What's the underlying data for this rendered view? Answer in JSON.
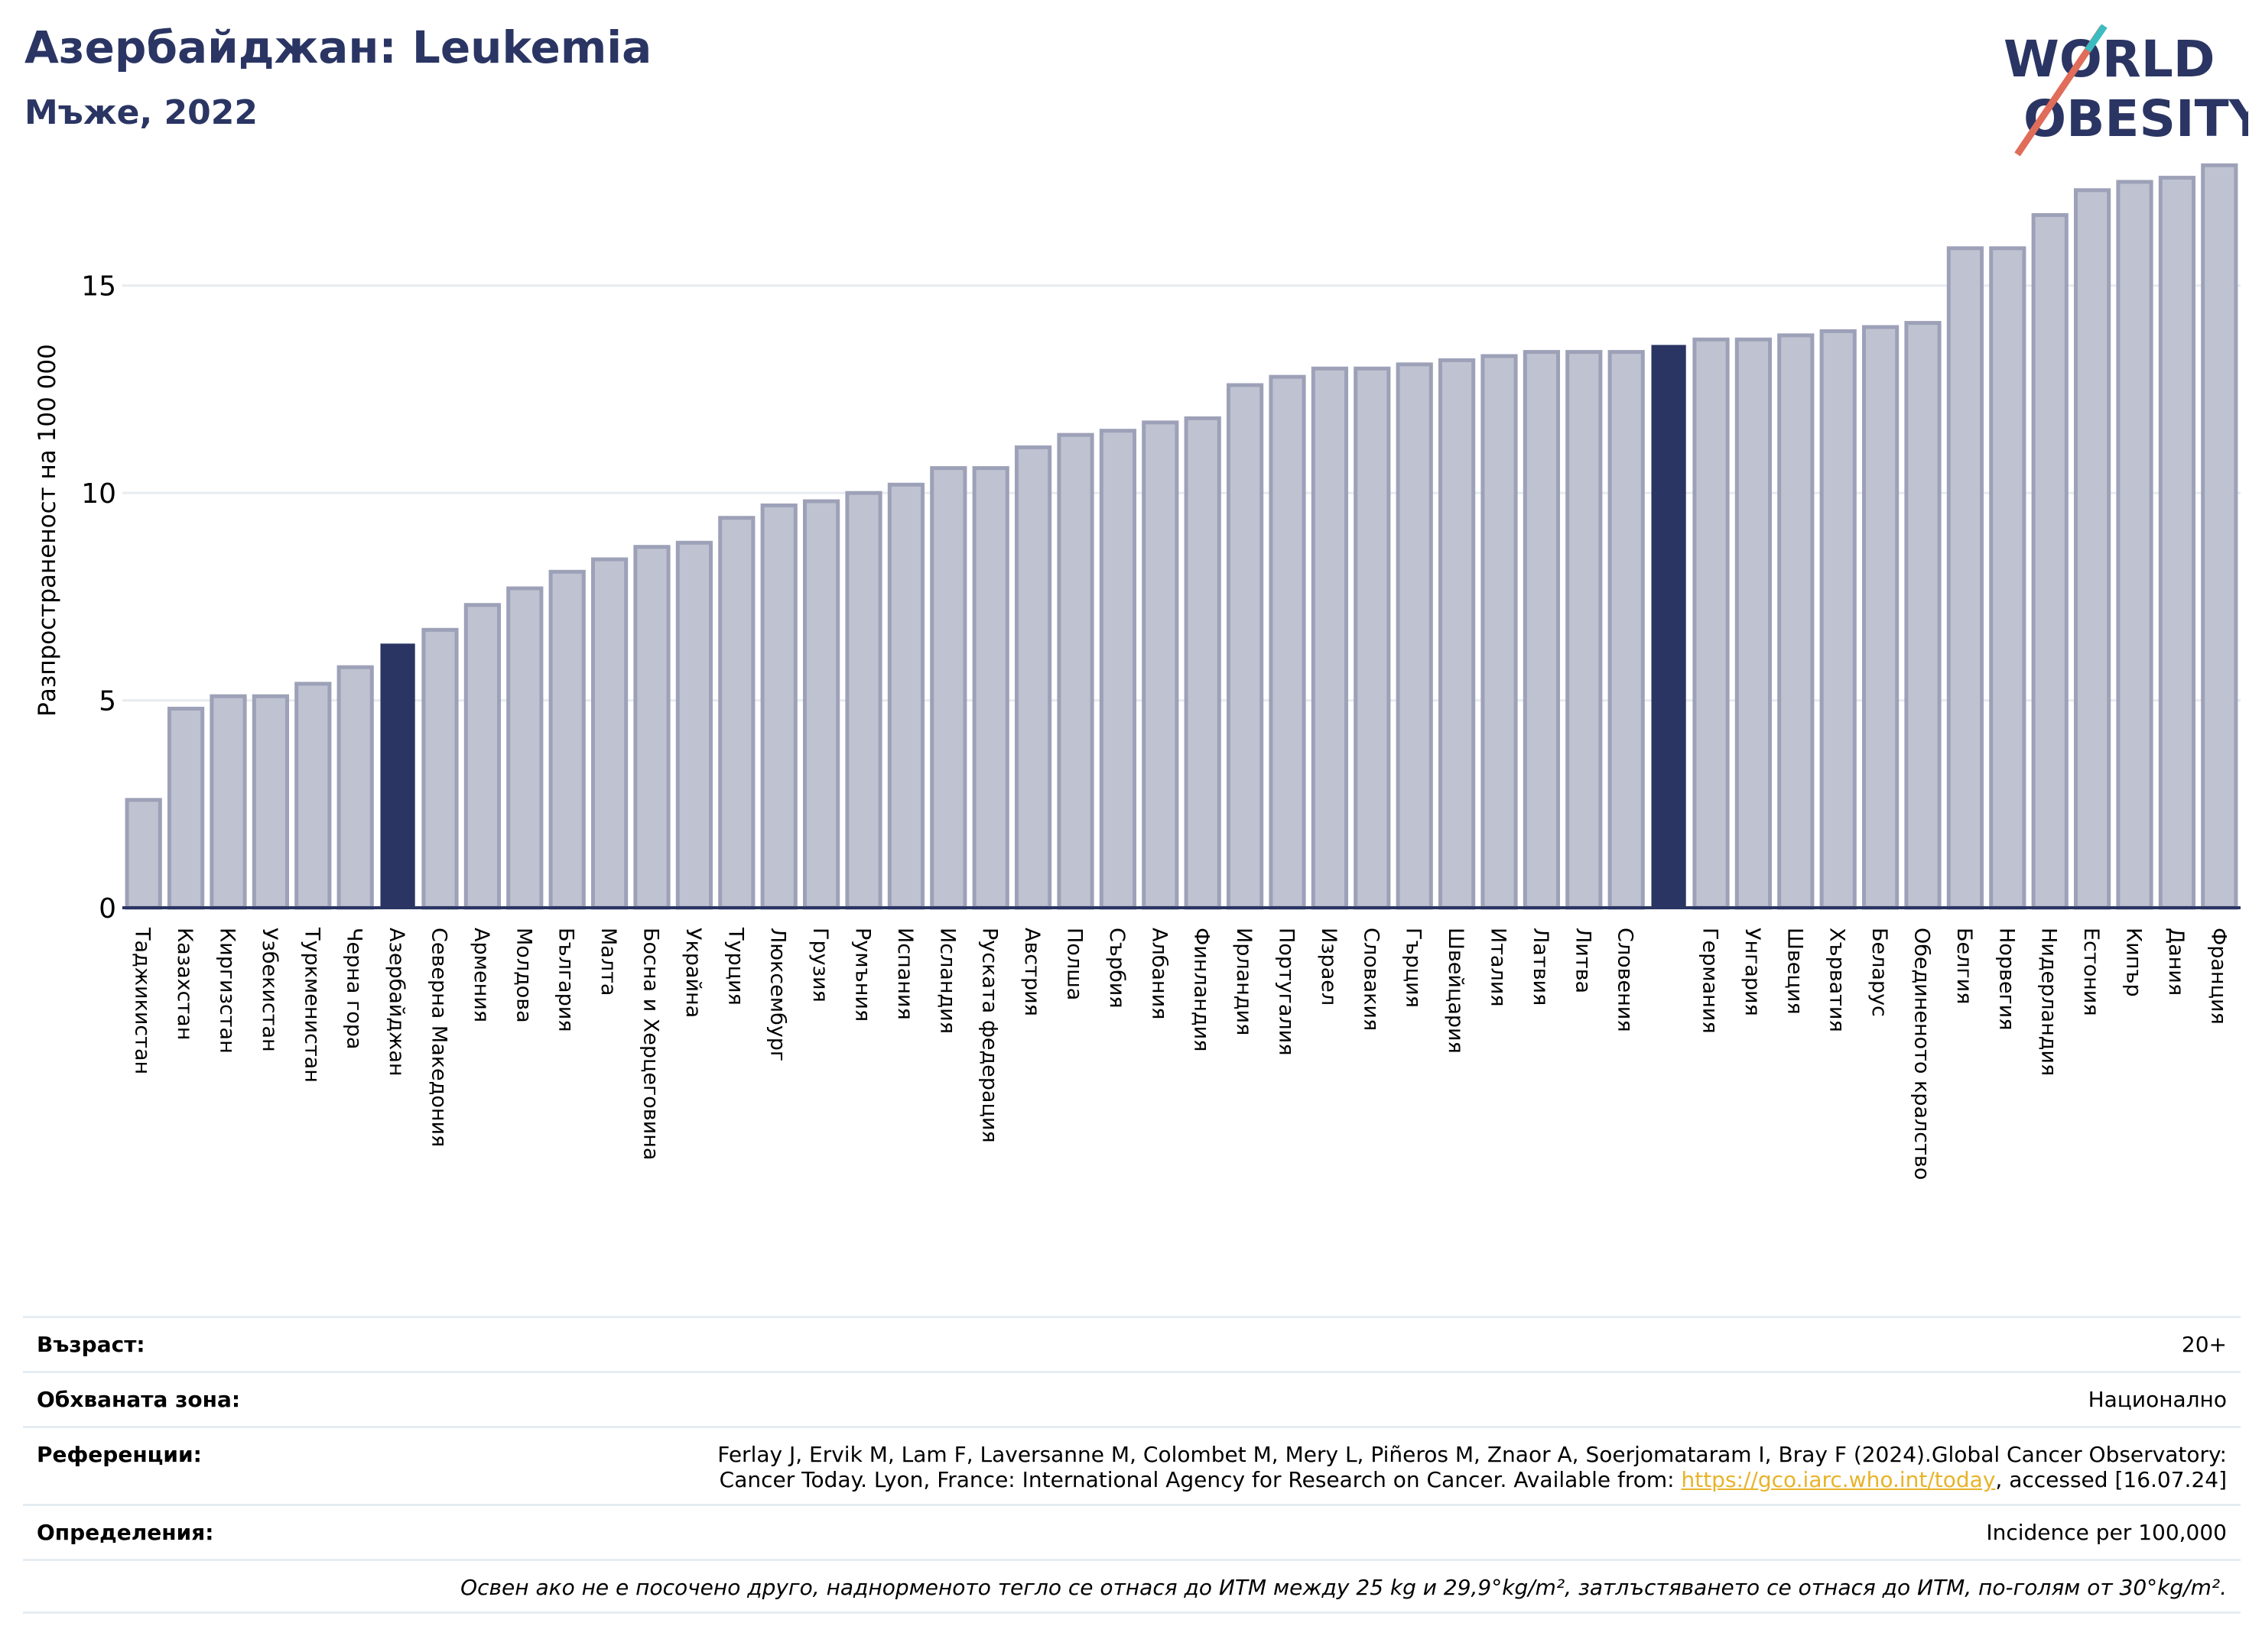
{
  "header": {
    "title": "Азербайджан: Leukemia",
    "subtitle": "Мъже, 2022"
  },
  "logo": {
    "line1": "WORLD",
    "line2": "OBESITY"
  },
  "chart_data": {
    "type": "bar",
    "ylabel": "Разпространеност  на 100 000",
    "ylim": [
      0,
      18.2
    ],
    "yticks": [
      0,
      5,
      10,
      15
    ],
    "grid": true,
    "categories": [
      "Таджикистан",
      "Казахстан",
      "Киргизстан",
      "Узбекистан",
      "Туркменистан",
      "Черна гора",
      "Азербайджан",
      "Северна Македония",
      "Армения",
      "Молдова",
      "България",
      "Малта",
      "Босна и Херцеговина",
      "Украйна",
      "Турция",
      "Люксембург",
      "Грузия",
      "Румъния",
      "Испания",
      "Исландия",
      "Руската федерация",
      "Австрия",
      "Полша",
      "Сърбия",
      "Албания",
      "Финландия",
      "Ирландия",
      "Португалия",
      "Израел",
      "Словакия",
      "Гърция",
      "Швейцария",
      "Италия",
      "Латвия",
      "Литва",
      "Словения",
      "",
      "Германия",
      "Унгария",
      "Швеция",
      "Хърватия",
      "Беларус",
      "Обединеното кралство",
      "Белгия",
      "Норвегия",
      "Нидерландия",
      "Естония",
      "Кипър",
      "Дания",
      "Франция"
    ],
    "values": [
      2.6,
      4.8,
      5.1,
      5.1,
      5.4,
      5.8,
      6.35,
      6.7,
      7.3,
      7.7,
      8.1,
      8.4,
      8.7,
      8.8,
      9.4,
      9.7,
      9.8,
      10.0,
      10.2,
      10.6,
      10.6,
      11.1,
      11.4,
      11.5,
      11.7,
      11.8,
      12.6,
      12.8,
      13.0,
      13.0,
      13.1,
      13.2,
      13.3,
      13.4,
      13.4,
      13.4,
      13.55,
      13.7,
      13.7,
      13.8,
      13.9,
      14.0,
      14.1,
      15.9,
      15.9,
      16.7,
      17.3,
      17.5,
      17.6,
      17.9
    ],
    "highlight_indices": [
      6,
      36
    ],
    "colors": {
      "bar": "#bfc2d0",
      "bar_edge": "#9da1b8",
      "highlight": "#2a3563",
      "grid": "#e8ebef",
      "axis": "#2a3563"
    }
  },
  "info": {
    "age_label": "Възраст:",
    "age_value": "20+",
    "area_label": "Обхваната зона:",
    "area_value": "Национално",
    "ref_label": "Референции:",
    "ref_text1": "Ferlay J, Ervik M, Lam F, Laversanne M, Colombet M, Mery L, Piñeros M, Znaor A, Soerjomataram I, Bray F (2024).Global Cancer Observatory:",
    "ref_text2": "Cancer Today. Lyon, France: International Agency for Research on Cancer. Available from: ",
    "ref_link": "https://gco.iarc.who.int/today",
    "ref_text3": ", accessed [16.07.24]",
    "def_label": "Определения:",
    "def_value": "Incidence per 100,000",
    "note": "Освен ако не е посочено друго, наднорменото тегло се отнася до ИТМ между 25 kg и 29,9°kg/m², затлъстяването се отнася до ИТМ, по-голям от 30°kg/m²."
  }
}
